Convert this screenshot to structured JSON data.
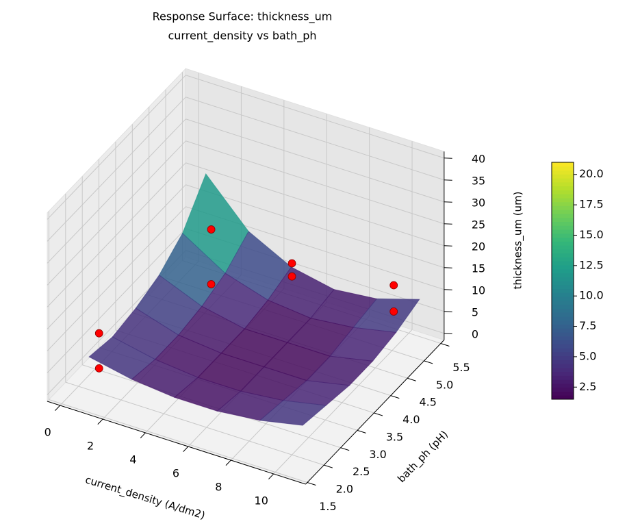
{
  "chart_data": {
    "type": "surface3d",
    "title": "Response Surface: thickness_um",
    "subtitle": "current_density vs bath_ph",
    "x_label": "current_density (A/dm2)",
    "y_label": "bath_ph (pH)",
    "z_label": "thickness_um (um)",
    "xlim": [
      -0.6,
      11.5
    ],
    "xticks": [
      0,
      2,
      4,
      6,
      8,
      10
    ],
    "ylim": [
      1.45,
      5.6
    ],
    "yticks": [
      1.5,
      {
        "value": 2,
        "label": "2.0"
      },
      2.5,
      {
        "value": 3,
        "label": "3.0"
      },
      3.5,
      {
        "value": 4,
        "label": "4.0"
      },
      4.5,
      {
        "value": 5,
        "label": "5.0"
      },
      5.5
    ],
    "zlim": [
      -1.5,
      41.5
    ],
    "zticks": [
      0,
      5,
      10,
      15,
      20,
      25,
      30,
      35,
      40
    ],
    "grid": true,
    "colormap": "viridis",
    "clim": [
      1.5,
      21
    ],
    "cticks": [
      2.5,
      {
        "value": 5,
        "label": "5.0"
      },
      7.5,
      {
        "value": 10,
        "label": "10.0"
      },
      12.5,
      {
        "value": 15,
        "label": "15.0"
      },
      17.5,
      {
        "value": 20,
        "label": "20.0"
      }
    ],
    "surface": {
      "x": [
        0.5,
        2.5,
        4.5,
        6.5,
        8.5,
        10.5
      ],
      "y": [
        2,
        2.7,
        3.4,
        4.1,
        4.8,
        5.5
      ],
      "z": [
        [
          6,
          4,
          3,
          3,
          4,
          6
        ],
        [
          5,
          3,
          2,
          2,
          3,
          5
        ],
        [
          6,
          3,
          2,
          2,
          2,
          4
        ],
        [
          8,
          4,
          2,
          2,
          2,
          4
        ],
        [
          12,
          6,
          3,
          2,
          3,
          5
        ],
        [
          20,
          10,
          5,
          3,
          4,
          7
        ]
      ]
    },
    "points": {
      "color": "#ff0000",
      "x": [
        0.5,
        0.5,
        2,
        2,
        5,
        5,
        10,
        10
      ],
      "y": [
        2.3,
        2.3,
        4.7,
        4.7,
        5.2,
        5.2,
        5.05,
        5.05
      ],
      "z": [
        1,
        9,
        16,
        3.5,
        9,
        6,
        13,
        7
      ]
    }
  }
}
